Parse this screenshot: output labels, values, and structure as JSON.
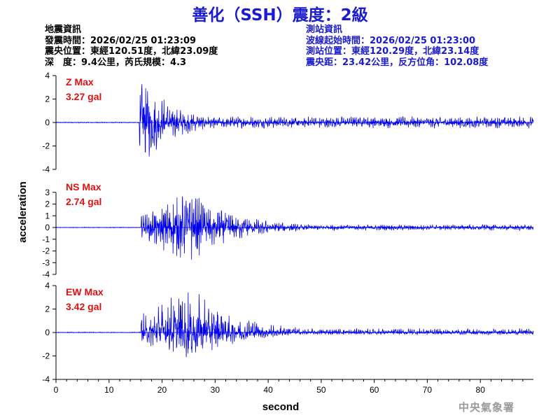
{
  "title": "善化（SSH）震度：2級",
  "quake_info": {
    "heading": "地震資訊",
    "time": "發震時間：2026/02/25 01:23:09",
    "location": "震央位置：東經120.51度，北緯23.09度",
    "depth_magnitude": "深　度：9.4公里，芮氏規模：4.3"
  },
  "station_info": {
    "heading": "測站資訊",
    "wave_start": "波線起始時間：2026/02/25 01:23:00",
    "location": "測站位置：東經120.29度，北緯23.14度",
    "distance_azimuth": "震央距：23.42公里，反方位角：102.08度"
  },
  "agency": "中央氣象署",
  "colors": {
    "title": "#1a1ad0",
    "trace": "#0000ee",
    "label": "#e01010",
    "axis": "#000000"
  },
  "chart_data": {
    "type": "line",
    "xlabel": "second",
    "ylabel": "acceleration",
    "xlim": [
      0,
      90
    ],
    "xticks": [
      0,
      10,
      20,
      30,
      40,
      50,
      60,
      70,
      80
    ],
    "grid": false,
    "panels": [
      {
        "component": "Z",
        "label": "Z Max",
        "max_text": "3.27 gal",
        "max": 3.27,
        "min_peak": -2.9,
        "ylim": [
          -4,
          4
        ],
        "yticks": [
          4,
          2,
          0,
          -2,
          -4
        ],
        "arrival_s": 15.7,
        "peak_s": 16.0,
        "decay": 6,
        "env_floor": 0.12
      },
      {
        "component": "NS",
        "label": "NS Max",
        "max_text": "2.74 gal",
        "max": 2.6,
        "min_peak": -2.74,
        "ylim": [
          -4,
          3
        ],
        "yticks": [
          3,
          2,
          1,
          0,
          -1,
          -2,
          -3,
          -4
        ],
        "arrival_s": 16.0,
        "peak_s": 25.0,
        "decay": 9,
        "env_floor": 0.08
      },
      {
        "component": "EW",
        "label": "EW Max",
        "max_text": "3.42 gal",
        "max": 3.42,
        "min_peak": -2.1,
        "ylim": [
          -4,
          4
        ],
        "yticks": [
          4,
          2,
          0,
          -2,
          -4
        ],
        "arrival_s": 16.0,
        "peak_s": 25.0,
        "decay": 9,
        "env_floor": 0.08
      }
    ]
  }
}
